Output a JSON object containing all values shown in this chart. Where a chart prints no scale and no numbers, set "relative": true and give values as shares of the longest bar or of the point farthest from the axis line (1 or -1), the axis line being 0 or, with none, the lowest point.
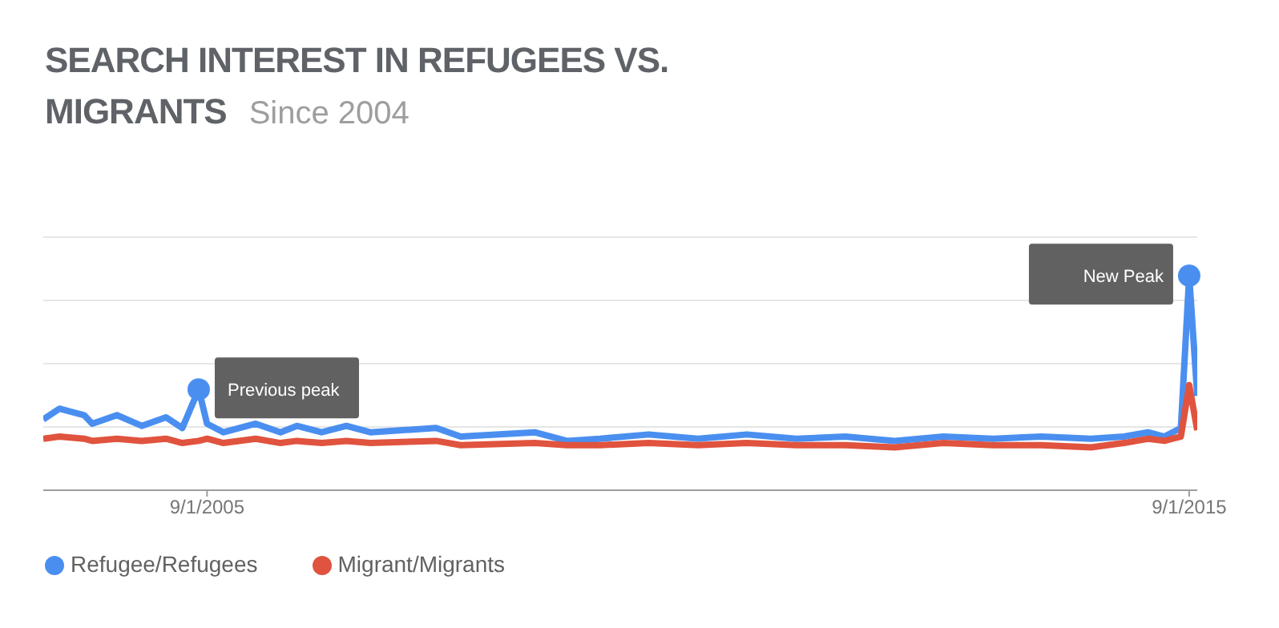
{
  "chart_data": {
    "type": "line",
    "title": "SEARCH INTEREST IN REFUGEES VS. MIGRANTS",
    "subtitle": "Since 2004",
    "relative": true,
    "grid": "y",
    "legend": "bottom",
    "marker": "none",
    "line_style": "solid",
    "x": [
      "2004-01",
      "2004-03",
      "2004-06",
      "2004-07",
      "2004-10",
      "2005-01",
      "2005-04",
      "2005-06",
      "2005-08",
      "2005-09",
      "2005-11",
      "2006-03",
      "2006-06",
      "2006-08",
      "2006-11",
      "2007-02",
      "2007-05",
      "2008-01",
      "2008-04",
      "2009-01",
      "2009-05",
      "2009-09",
      "2010-03",
      "2010-09",
      "2011-03",
      "2011-09",
      "2012-03",
      "2012-09",
      "2013-03",
      "2013-09",
      "2014-03",
      "2014-09",
      "2015-01",
      "2015-04",
      "2015-06",
      "2015-07",
      "2015-08",
      "2015-09",
      "2015-10"
    ],
    "xlim": [
      "2004-01-01",
      "2015-10-01"
    ],
    "xticks": [
      {
        "value": "2005-09-01",
        "label": "9/1/2005"
      },
      {
        "value": "2015-09-01",
        "label": "9/1/2015"
      }
    ],
    "series": [
      {
        "name": "Refugee/Refugees",
        "color": "#4a8ff0",
        "values": [
          0.33,
          0.38,
          0.35,
          0.31,
          0.35,
          0.3,
          0.34,
          0.29,
          0.47,
          0.31,
          0.27,
          0.31,
          0.27,
          0.3,
          0.27,
          0.3,
          0.27,
          0.29,
          0.25,
          0.27,
          0.23,
          0.24,
          0.26,
          0.24,
          0.26,
          0.24,
          0.25,
          0.23,
          0.25,
          0.24,
          0.25,
          0.24,
          0.25,
          0.27,
          0.25,
          0.27,
          0.29,
          1.0,
          0.44
        ]
      },
      {
        "name": "Migrant/Migrants",
        "color": "#e0533e",
        "values": [
          0.24,
          0.25,
          0.24,
          0.23,
          0.24,
          0.23,
          0.24,
          0.22,
          0.23,
          0.24,
          0.22,
          0.24,
          0.22,
          0.23,
          0.22,
          0.23,
          0.22,
          0.23,
          0.21,
          0.22,
          0.21,
          0.21,
          0.22,
          0.21,
          0.22,
          0.21,
          0.21,
          0.2,
          0.22,
          0.21,
          0.21,
          0.2,
          0.22,
          0.24,
          0.23,
          0.24,
          0.25,
          0.49,
          0.28
        ]
      }
    ],
    "annotations": [
      {
        "text": "Previous peak",
        "x": "2005-08",
        "y": 0.47
      },
      {
        "text": "New Peak",
        "x": "2015-09",
        "y": 1.0
      }
    ]
  }
}
